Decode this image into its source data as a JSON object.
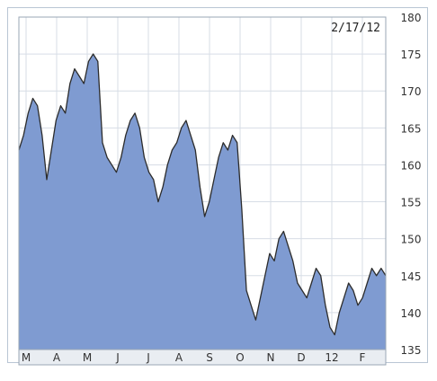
{
  "chart_data": {
    "type": "area",
    "date_label": "2/17/12",
    "ylim": [
      135,
      180
    ],
    "y_ticks": [
      180,
      175,
      170,
      165,
      160,
      155,
      150,
      145,
      140,
      135
    ],
    "x_ticks": [
      "M",
      "A",
      "M",
      "J",
      "J",
      "A",
      "S",
      "O",
      "N",
      "D",
      "12",
      "F"
    ],
    "grid": true,
    "colors": {
      "fill": "#7f9bd1",
      "line": "#2c2c2c",
      "grid": "#d7dde6",
      "axis": "#9aa7b5",
      "bottom_bar": "#e9edf2"
    },
    "series": [
      {
        "values": [
          162,
          164,
          167,
          169,
          168,
          164,
          158,
          162,
          166,
          168,
          167,
          171,
          173,
          172,
          171,
          174,
          175,
          174,
          163,
          161,
          160,
          159,
          161,
          164,
          166,
          167,
          165,
          161,
          159,
          158,
          155,
          157,
          160,
          162,
          163,
          165,
          166,
          164,
          162,
          157,
          153,
          155,
          158,
          161,
          163,
          162,
          164,
          163,
          154,
          143,
          141,
          139,
          142,
          145,
          148,
          147,
          150,
          151,
          149,
          147,
          144,
          143,
          142,
          144,
          146,
          145,
          141,
          138,
          137,
          140,
          142,
          144,
          143,
          141,
          142,
          144,
          146,
          145,
          146,
          145
        ]
      }
    ]
  }
}
